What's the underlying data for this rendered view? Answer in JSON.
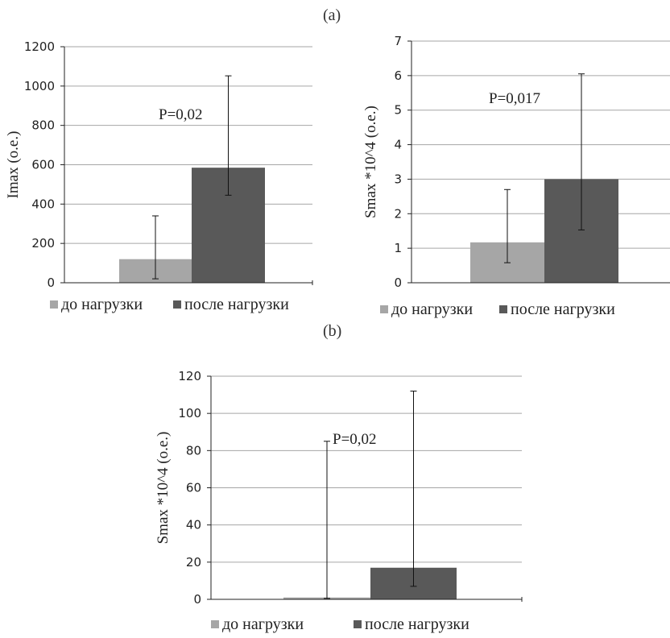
{
  "figure": {
    "panel_a_label": "(a)",
    "panel_b_label": "(b)"
  },
  "legend": {
    "before": "до нагрузки",
    "after": "после нагрузки"
  },
  "colors": {
    "before": "#a6a6a6",
    "after": "#595959",
    "grid": "#a6a6a6",
    "axis": "#222222"
  },
  "chart_data": [
    {
      "type": "bar",
      "categories": [
        "до нагрузки",
        "после нагрузки"
      ],
      "values": [
        120,
        585
      ],
      "errors_low": [
        20,
        445
      ],
      "errors_high": [
        340,
        1052
      ],
      "ylabel": "Imax (о.е.)",
      "ylim": [
        0,
        1200
      ],
      "yticks": [
        0,
        200,
        400,
        600,
        800,
        1000,
        1200
      ],
      "annotation": "P=0,02",
      "grid": true,
      "legend": "bottom"
    },
    {
      "type": "bar",
      "categories": [
        "до нагрузки",
        "после нагрузки"
      ],
      "values": [
        1.17,
        3.0
      ],
      "errors_low": [
        0.58,
        1.53
      ],
      "errors_high": [
        2.7,
        6.05
      ],
      "ylabel": "Smax *10^4 (о.е.)",
      "ylim": [
        0,
        7
      ],
      "yticks": [
        0,
        1,
        2,
        3,
        4,
        5,
        6,
        7
      ],
      "annotation": "P=0,017",
      "grid": true,
      "legend": "bottom"
    },
    {
      "type": "bar",
      "categories": [
        "до нагрузки",
        "после нагрузки"
      ],
      "values": [
        1,
        17
      ],
      "errors_low": [
        0.5,
        7
      ],
      "errors_high": [
        85,
        112
      ],
      "ylabel": "Smax *10^4 (о.е.)",
      "ylim": [
        0,
        120
      ],
      "yticks": [
        0,
        20,
        40,
        60,
        80,
        100,
        120
      ],
      "annotation": "P=0,02",
      "grid": true,
      "legend": "bottom"
    }
  ]
}
